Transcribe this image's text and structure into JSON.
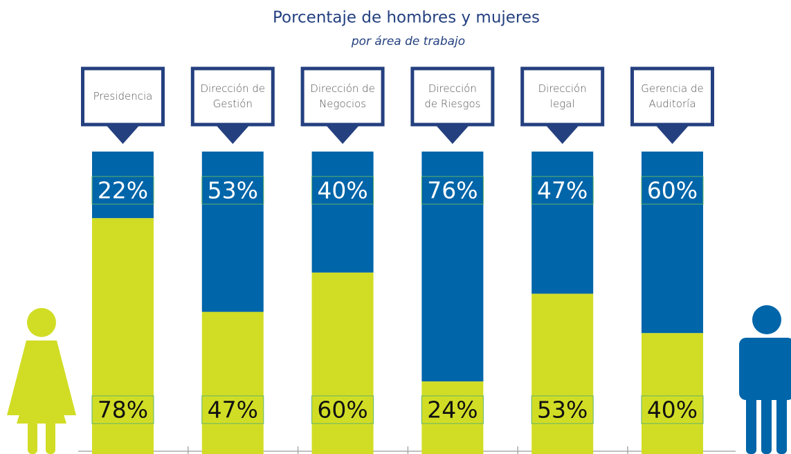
{
  "chart_data": {
    "type": "stacked-bar",
    "title": "Porcentaje de hombres y mujeres",
    "subtitle": "por área de trabajo",
    "categories": [
      "Presidencia",
      "Dirección de\nGestión",
      "Dirección de\nNegocios",
      "Dirección\nde Riesgos",
      "Dirección\nlegal",
      "Gerencia de\nAuditoría"
    ],
    "series": [
      {
        "color": "#d1dd25",
        "values": [
          78,
          47,
          60,
          24,
          53,
          40
        ],
        "value_labels": [
          "78%",
          "47%",
          "60%",
          "24%",
          "53%",
          "40%"
        ]
      },
      {
        "color": "#0065a9",
        "values": [
          22,
          53,
          40,
          76,
          47,
          60
        ],
        "value_labels": [
          "22%",
          "53%",
          "40%",
          "76%",
          "47%",
          "60%"
        ]
      }
    ],
    "ylim": [
      0,
      100
    ]
  }
}
